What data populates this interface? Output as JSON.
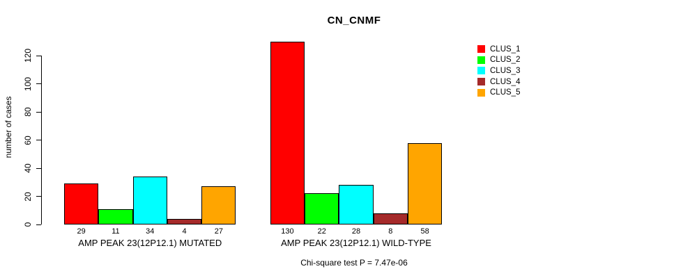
{
  "title": "CN_CNMF",
  "footer": "Chi-square test P = 7.47e-06",
  "chart_data": {
    "type": "bar",
    "title": "CN_CNMF",
    "xlabel": "",
    "ylabel": "number of cases",
    "ylim": [
      0,
      120
    ],
    "yticks": [
      0,
      20,
      40,
      60,
      80,
      100,
      120
    ],
    "grid": false,
    "legend_position": "top-right",
    "categories": [
      "AMP PEAK 23(12P12.1) MUTATED",
      "AMP PEAK 23(12P12.1) WILD-TYPE"
    ],
    "series": [
      {
        "name": "CLUS_1",
        "color": "#FF0000",
        "values": [
          29,
          130
        ]
      },
      {
        "name": "CLUS_2",
        "color": "#00FF00",
        "values": [
          11,
          22
        ]
      },
      {
        "name": "CLUS_3",
        "color": "#00FFFF",
        "values": [
          34,
          28
        ]
      },
      {
        "name": "CLUS_4",
        "color": "#A52A2A",
        "values": [
          4,
          8
        ]
      },
      {
        "name": "CLUS_5",
        "color": "#FFA500",
        "values": [
          27,
          58
        ]
      }
    ],
    "bar_value_labels": {
      "AMP PEAK 23(12P12.1) MUTATED": [
        29,
        11,
        34,
        4,
        27
      ],
      "AMP PEAK 23(12P12.1) WILD-TYPE": [
        130,
        22,
        28,
        8,
        58
      ]
    },
    "annotation": "Chi-square test P = 7.47e-06",
    "bar_border_color": "#000000",
    "background_color": "#FFFFFF"
  }
}
